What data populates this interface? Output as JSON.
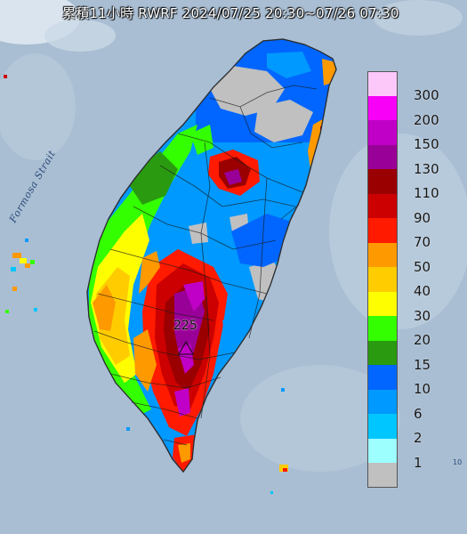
{
  "title": "累積11小時 RWRF 2024/07/25 20:30~07/26 07:30",
  "strait_label": "Formosa Strait",
  "peak_value": "225",
  "edge_number": "10",
  "legend": [
    {
      "value": "300",
      "color": "#fcc8fa"
    },
    {
      "value": "200",
      "color": "#f800f8"
    },
    {
      "value": "150",
      "color": "#c000c6"
    },
    {
      "value": "130",
      "color": "#990098"
    },
    {
      "value": "110",
      "color": "#9b0000"
    },
    {
      "value": "90",
      "color": "#cc0000"
    },
    {
      "value": "70",
      "color": "#ff1a00"
    },
    {
      "value": "50",
      "color": "#ff9900"
    },
    {
      "value": "40",
      "color": "#ffcc00"
    },
    {
      "value": "30",
      "color": "#fefe00"
    },
    {
      "value": "20",
      "color": "#33ff00"
    },
    {
      "value": "15",
      "color": "#2a9a10"
    },
    {
      "value": "10",
      "color": "#0066ff"
    },
    {
      "value": "6",
      "color": "#0099ff"
    },
    {
      "value": "2",
      "color": "#00c6ff"
    },
    {
      "value": "1",
      "color": "#9dfffe"
    },
    {
      "value": "",
      "color": "#c0c0c0"
    }
  ]
}
